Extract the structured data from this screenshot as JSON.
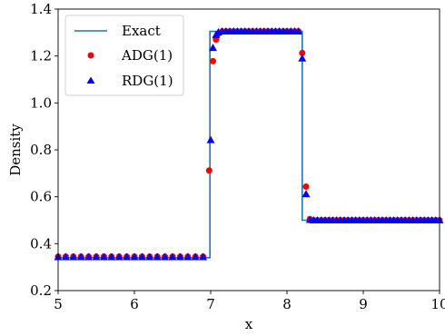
{
  "chart_data": {
    "type": "line",
    "xlabel": "x",
    "ylabel": "Density",
    "xlim": [
      5,
      10
    ],
    "ylim": [
      0.2,
      1.4
    ],
    "xticks": [
      5,
      6,
      7,
      8,
      9,
      10
    ],
    "yticks": [
      0.2,
      0.4,
      0.6,
      0.8,
      1.0,
      1.2,
      1.4
    ],
    "xtick_labels": [
      "5",
      "6",
      "7",
      "8",
      "9",
      "10"
    ],
    "ytick_labels": [
      "0.2",
      "0.4",
      "0.6",
      "0.8",
      "1.0",
      "1.2",
      "1.4"
    ],
    "grid": false,
    "legend_position": "top-left",
    "series": [
      {
        "name": "Exact",
        "kind": "line",
        "color": "#1f77b4",
        "x": [
          5.0,
          6.99,
          6.99,
          8.2,
          8.2,
          10.0
        ],
        "y": [
          0.34,
          0.34,
          1.305,
          1.305,
          0.5,
          0.5
        ]
      },
      {
        "name": "ADG(1)",
        "kind": "scatter",
        "marker": "circle",
        "color": "#ff0000",
        "x": [
          5.0,
          5.1,
          5.2,
          5.3,
          5.4,
          5.5,
          5.6,
          5.7,
          5.8,
          5.9,
          6.0,
          6.1,
          6.2,
          6.3,
          6.4,
          6.5,
          6.6,
          6.7,
          6.8,
          6.9,
          6.98,
          7.03,
          7.07,
          7.1,
          7.15,
          7.2,
          7.25,
          7.3,
          7.35,
          7.4,
          7.45,
          7.5,
          7.55,
          7.6,
          7.65,
          7.7,
          7.75,
          7.8,
          7.85,
          7.9,
          7.95,
          8.0,
          8.05,
          8.1,
          8.15,
          8.2,
          8.25,
          8.3,
          8.35,
          8.4,
          8.45,
          8.5,
          8.55,
          8.6,
          8.65,
          8.7,
          8.75,
          8.8,
          8.85,
          8.9,
          8.95,
          9.0,
          9.05,
          9.1,
          9.15,
          9.2,
          9.25,
          9.3,
          9.35,
          9.4,
          9.45,
          9.5,
          9.55,
          9.6,
          9.65,
          9.7,
          9.75,
          9.8,
          9.85,
          9.9,
          9.95,
          10.0
        ],
        "y": [
          0.345,
          0.345,
          0.345,
          0.345,
          0.345,
          0.345,
          0.345,
          0.345,
          0.345,
          0.345,
          0.345,
          0.345,
          0.345,
          0.345,
          0.345,
          0.345,
          0.345,
          0.345,
          0.345,
          0.345,
          0.712,
          1.178,
          1.27,
          1.295,
          1.305,
          1.305,
          1.305,
          1.305,
          1.305,
          1.305,
          1.305,
          1.305,
          1.305,
          1.305,
          1.305,
          1.305,
          1.305,
          1.305,
          1.305,
          1.305,
          1.305,
          1.305,
          1.305,
          1.305,
          1.305,
          1.213,
          0.643,
          0.505,
          0.5,
          0.5,
          0.5,
          0.5,
          0.5,
          0.5,
          0.5,
          0.5,
          0.5,
          0.5,
          0.5,
          0.5,
          0.5,
          0.5,
          0.5,
          0.5,
          0.5,
          0.5,
          0.5,
          0.5,
          0.5,
          0.5,
          0.5,
          0.5,
          0.5,
          0.5,
          0.5,
          0.5,
          0.5,
          0.5,
          0.5,
          0.5,
          0.5,
          0.5
        ]
      },
      {
        "name": "RDG(1)",
        "kind": "scatter",
        "marker": "triangle",
        "color": "#0000ff",
        "x": [
          5.0,
          5.1,
          5.2,
          5.3,
          5.4,
          5.5,
          5.6,
          5.7,
          5.8,
          5.9,
          6.0,
          6.1,
          6.2,
          6.3,
          6.4,
          6.5,
          6.6,
          6.7,
          6.8,
          6.9,
          7.0,
          7.03,
          7.07,
          7.1,
          7.15,
          7.2,
          7.25,
          7.3,
          7.35,
          7.4,
          7.45,
          7.5,
          7.55,
          7.6,
          7.65,
          7.7,
          7.75,
          7.8,
          7.85,
          7.9,
          7.95,
          8.0,
          8.05,
          8.1,
          8.15,
          8.2,
          8.25,
          8.3,
          8.35,
          8.4,
          8.45,
          8.5,
          8.55,
          8.6,
          8.65,
          8.7,
          8.75,
          8.8,
          8.85,
          8.9,
          8.95,
          9.0,
          9.05,
          9.1,
          9.15,
          9.2,
          9.25,
          9.3,
          9.35,
          9.4,
          9.45,
          9.5,
          9.55,
          9.6,
          9.65,
          9.7,
          9.75,
          9.8,
          9.85,
          9.9,
          9.95,
          10.0
        ],
        "y": [
          0.343,
          0.343,
          0.343,
          0.343,
          0.343,
          0.343,
          0.343,
          0.343,
          0.343,
          0.343,
          0.343,
          0.343,
          0.343,
          0.343,
          0.343,
          0.343,
          0.343,
          0.343,
          0.343,
          0.343,
          0.842,
          1.235,
          1.29,
          1.302,
          1.305,
          1.305,
          1.305,
          1.305,
          1.305,
          1.305,
          1.305,
          1.305,
          1.305,
          1.305,
          1.305,
          1.305,
          1.305,
          1.305,
          1.305,
          1.305,
          1.305,
          1.305,
          1.305,
          1.305,
          1.305,
          1.19,
          0.612,
          0.502,
          0.5,
          0.5,
          0.5,
          0.5,
          0.5,
          0.5,
          0.5,
          0.5,
          0.5,
          0.5,
          0.5,
          0.5,
          0.5,
          0.5,
          0.5,
          0.5,
          0.5,
          0.5,
          0.5,
          0.5,
          0.5,
          0.5,
          0.5,
          0.5,
          0.5,
          0.5,
          0.5,
          0.5,
          0.5,
          0.5,
          0.5,
          0.5,
          0.5,
          0.5
        ]
      }
    ]
  }
}
